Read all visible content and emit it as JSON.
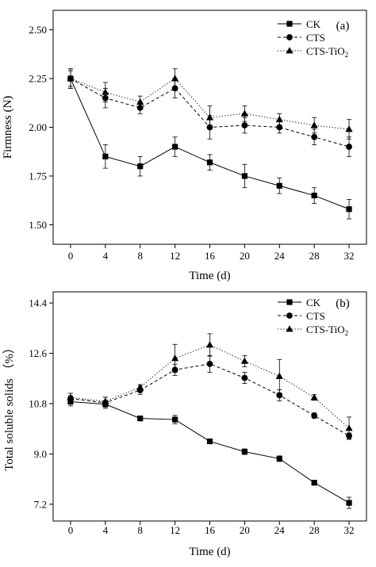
{
  "charts": [
    {
      "type": "line",
      "panel_label": "(a)",
      "xlabel": "Time (d)",
      "ylabel": "Firmness (N)",
      "xlim": [
        -2,
        34
      ],
      "ylim": [
        1.4,
        2.6
      ],
      "x_ticks": [
        0,
        4,
        8,
        12,
        16,
        20,
        24,
        28,
        32
      ],
      "y_ticks": [
        1.5,
        1.75,
        2.0,
        2.25,
        2.5
      ],
      "y_tick_labels": [
        "1.50",
        "1.75",
        "2.00",
        "2.25",
        "2.50"
      ],
      "legend_position": "top-right",
      "grid": false,
      "series": [
        {
          "name": "CK",
          "sub": "",
          "marker": "square",
          "dash": "solid",
          "x": [
            0,
            4,
            8,
            12,
            16,
            20,
            24,
            28,
            32
          ],
          "y": [
            2.25,
            1.85,
            1.8,
            1.9,
            1.82,
            1.75,
            1.7,
            1.65,
            1.58
          ],
          "err": [
            0.05,
            0.06,
            0.05,
            0.05,
            0.04,
            0.06,
            0.04,
            0.04,
            0.05
          ]
        },
        {
          "name": "CTS",
          "sub": "",
          "marker": "circle",
          "dash": "dashed",
          "x": [
            0,
            4,
            8,
            12,
            16,
            20,
            24,
            28,
            32
          ],
          "y": [
            2.25,
            2.15,
            2.1,
            2.2,
            2.0,
            2.01,
            2.0,
            1.95,
            1.9
          ],
          "err": [
            0.04,
            0.05,
            0.03,
            0.05,
            0.06,
            0.04,
            0.03,
            0.04,
            0.05
          ]
        },
        {
          "name": "CTS-TiO",
          "sub": "2",
          "marker": "triangle",
          "dash": "dotted",
          "x": [
            0,
            4,
            8,
            12,
            16,
            20,
            24,
            28,
            32
          ],
          "y": [
            2.25,
            2.18,
            2.13,
            2.25,
            2.05,
            2.07,
            2.04,
            2.01,
            1.99
          ],
          "err": [
            0.05,
            0.05,
            0.03,
            0.05,
            0.06,
            0.04,
            0.03,
            0.04,
            0.05
          ]
        }
      ]
    },
    {
      "type": "line",
      "panel_label": "(b)",
      "xlabel": "Time (d)",
      "ylabel": "Total soluble solids （%）",
      "xlim": [
        -2,
        34
      ],
      "ylim": [
        6.6,
        14.8
      ],
      "x_ticks": [
        0,
        4,
        8,
        12,
        16,
        20,
        24,
        28,
        32
      ],
      "y_ticks": [
        7.2,
        9.0,
        10.8,
        12.6,
        14.4
      ],
      "y_tick_labels": [
        "7.2",
        "9.0",
        "10.8",
        "12.6",
        "14.4"
      ],
      "legend_position": "top-right",
      "grid": false,
      "series": [
        {
          "name": "CK",
          "sub": "",
          "marker": "square",
          "dash": "solid",
          "x": [
            0,
            4,
            8,
            12,
            16,
            20,
            24,
            28,
            32
          ],
          "y": [
            10.87,
            10.78,
            10.27,
            10.23,
            9.45,
            9.08,
            8.83,
            7.97,
            7.25
          ],
          "err": [
            0.15,
            0.1,
            0.05,
            0.15,
            0.05,
            0.1,
            0.1,
            0.05,
            0.2
          ]
        },
        {
          "name": "CTS",
          "sub": "",
          "marker": "circle",
          "dash": "dashed",
          "x": [
            0,
            4,
            8,
            12,
            16,
            20,
            24,
            28,
            32
          ],
          "y": [
            10.98,
            10.83,
            11.28,
            12.01,
            12.22,
            11.72,
            11.1,
            10.37,
            9.65
          ],
          "err": [
            0.1,
            0.2,
            0.15,
            0.2,
            0.3,
            0.2,
            0.2,
            0.1,
            0.1
          ]
        },
        {
          "name": "CTS-TiO",
          "sub": "2",
          "marker": "triangle",
          "dash": "dotted",
          "x": [
            0,
            4,
            8,
            12,
            16,
            20,
            24,
            28,
            32
          ],
          "y": [
            11.02,
            10.88,
            11.38,
            12.42,
            12.9,
            12.32,
            11.78,
            11.02,
            9.92
          ],
          "err": [
            0.15,
            0.15,
            0.1,
            0.5,
            0.4,
            0.2,
            0.6,
            0.1,
            0.4
          ]
        }
      ]
    }
  ]
}
